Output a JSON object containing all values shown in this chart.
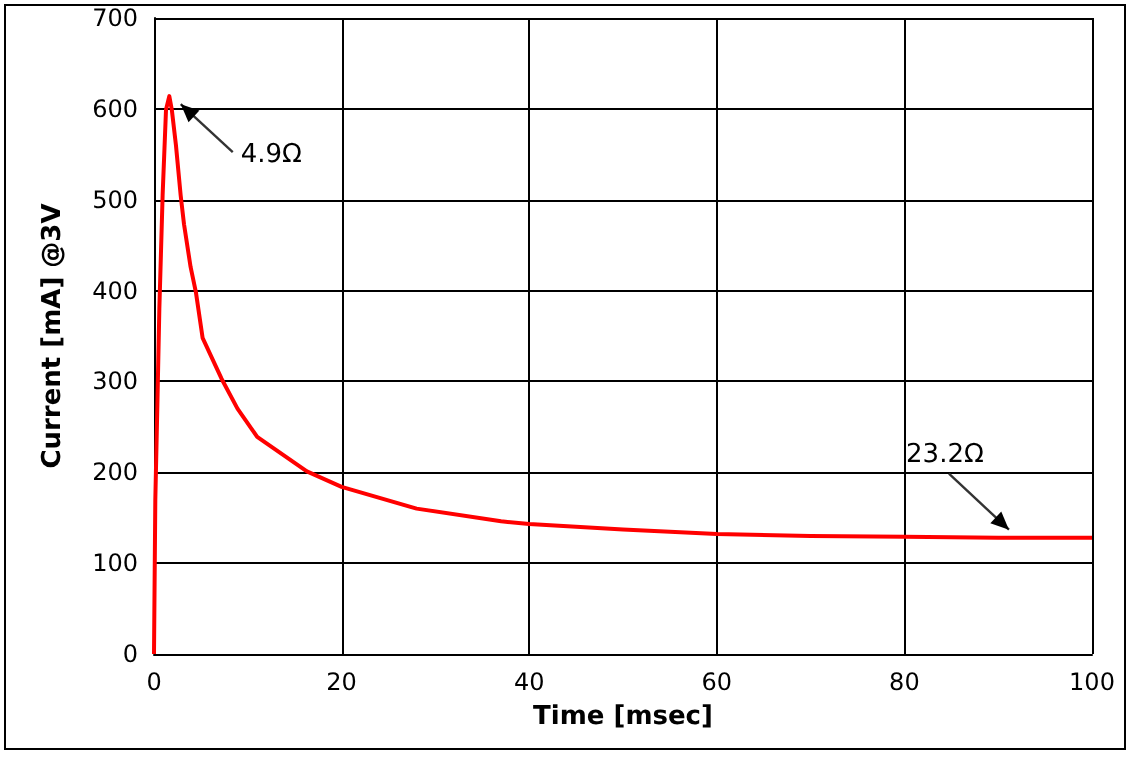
{
  "chart_data": {
    "type": "line",
    "xlabel": "Time [msec]",
    "ylabel": "Current [mA] @3V",
    "xlim": [
      0,
      100
    ],
    "xticks": [
      0,
      20,
      40,
      60,
      80,
      100
    ],
    "ylim": [
      0,
      700
    ],
    "yticks": [
      0,
      100,
      200,
      300,
      400,
      500,
      600,
      700
    ],
    "grid": true,
    "marker": "none",
    "line_style": "solid",
    "series": [
      {
        "color": "#ff0000",
        "x": [
          0,
          0.14,
          0.35,
          0.57,
          0.92,
          1.28,
          1.63,
          1.9,
          2.34,
          2.84,
          3.2,
          3.9,
          4.47,
          5.18,
          7.2,
          8.9,
          11.0,
          16.3,
          20,
          28,
          37,
          40,
          50,
          60,
          70,
          80,
          90,
          100
        ],
        "values": [
          0,
          170,
          270,
          380,
          505,
          599,
          614,
          599,
          560,
          505,
          473,
          426,
          398,
          348,
          303,
          270,
          239,
          201,
          184,
          160,
          146,
          143,
          137,
          132,
          130,
          129,
          128,
          128
        ]
      }
    ],
    "annotations": [
      {
        "text": "4.9Ω",
        "x": 2,
        "y": 614
      },
      {
        "text": "23.2Ω",
        "x": 92,
        "y": 128
      }
    ]
  }
}
